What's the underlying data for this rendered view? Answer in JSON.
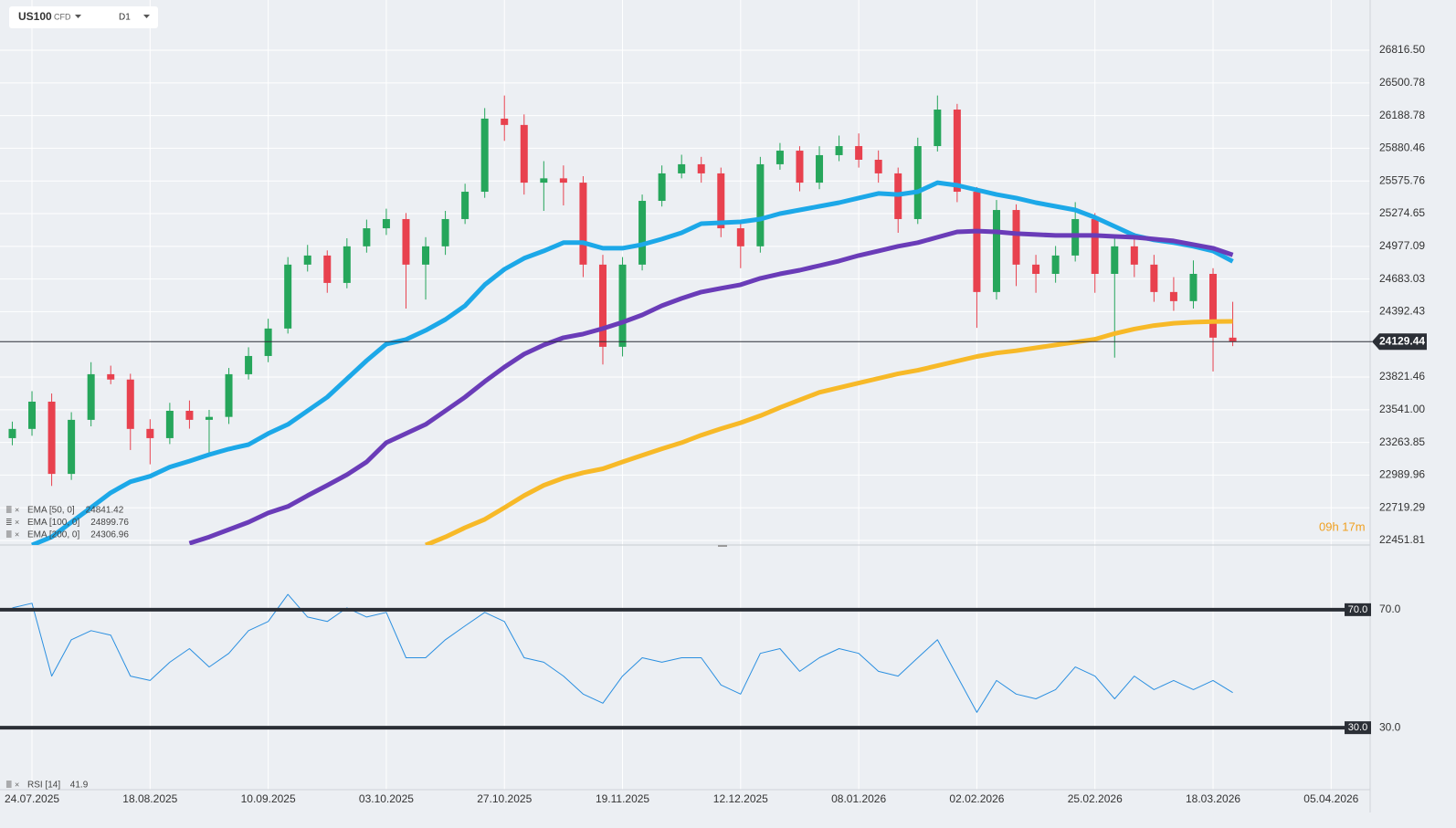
{
  "toolbar": {
    "symbol": "US100",
    "instrument": "CFD",
    "timeframe": "D1"
  },
  "countdown": "09h 17m",
  "chart_data": [
    {
      "type": "candlestick",
      "log_scale": true,
      "grid": true,
      "up_color": "#26a65b",
      "down_color": "#e8414e",
      "last_price": 24129.44,
      "categories": [
        null,
        "24.07.2025",
        null,
        null,
        null,
        null,
        null,
        "18.08.2025",
        null,
        null,
        null,
        null,
        null,
        "10.09.2025",
        null,
        null,
        null,
        null,
        null,
        "03.10.2025",
        null,
        null,
        null,
        null,
        null,
        "27.10.2025",
        null,
        null,
        null,
        null,
        null,
        "19.11.2025",
        null,
        null,
        null,
        null,
        null,
        "12.12.2025",
        null,
        null,
        null,
        null,
        null,
        "08.01.2026",
        null,
        null,
        null,
        null,
        null,
        "02.02.2026",
        null,
        null,
        null,
        null,
        null,
        "25.02.2026",
        null,
        null,
        null,
        null,
        null,
        "18.03.2026",
        null,
        null,
        null,
        null,
        null,
        "05.04.2026",
        null,
        null
      ],
      "open": [
        23300,
        23378,
        23610,
        23000,
        23455,
        23846,
        23800,
        23378,
        23300,
        23532,
        23455,
        23480,
        23846,
        24004,
        24244,
        24812,
        24894,
        24648,
        24977,
        25141,
        25225,
        24812,
        24977,
        25225,
        25476,
        26160,
        26100,
        25560,
        25600,
        25560,
        24812,
        24084,
        24812,
        25392,
        25646,
        25731,
        25646,
        25141,
        24977,
        25731,
        25858,
        25560,
        25816,
        25901,
        25773,
        25646,
        25225,
        25901,
        26246,
        25476,
        24567,
        25308,
        24812,
        24729,
        24894,
        25225,
        24729,
        24977,
        24812,
        24567,
        24486,
        24729,
        24164,
        null,
        null,
        null,
        null,
        null,
        null,
        null
      ],
      "high": [
        23440,
        23700,
        23680,
        23520,
        23950,
        23920,
        23850,
        23460,
        23600,
        23620,
        23540,
        23900,
        24080,
        24330,
        24880,
        24990,
        24940,
        25050,
        25220,
        25320,
        25280,
        25060,
        25300,
        25550,
        26260,
        26380,
        26200,
        25760,
        25720,
        25620,
        24900,
        24880,
        25450,
        25720,
        25820,
        25800,
        25700,
        25200,
        25800,
        25930,
        25900,
        25900,
        26000,
        26020,
        25860,
        25700,
        25980,
        26380,
        26300,
        25520,
        25400,
        25360,
        24900,
        24980,
        25380,
        25280,
        25060,
        25100,
        24900,
        24700,
        24850,
        24780,
        24480,
        null,
        null,
        null,
        null,
        null,
        null,
        null
      ],
      "low": [
        23240,
        23320,
        22900,
        22950,
        23400,
        23760,
        23200,
        23080,
        23250,
        23380,
        23150,
        23420,
        23800,
        23950,
        24200,
        24750,
        24560,
        24600,
        24920,
        25080,
        24420,
        24500,
        24900,
        25180,
        25420,
        25950,
        25450,
        25300,
        25350,
        24700,
        23930,
        24000,
        24760,
        25340,
        25600,
        25560,
        25060,
        24780,
        24920,
        25680,
        25480,
        25500,
        25760,
        25700,
        25560,
        25100,
        25180,
        25850,
        25380,
        24250,
        24500,
        24620,
        24560,
        24650,
        24840,
        24560,
        23990,
        24700,
        24480,
        24400,
        24420,
        23870,
        24090,
        null,
        null,
        null,
        null,
        null,
        null,
        null
      ],
      "close": [
        23378,
        23610,
        23000,
        23455,
        23846,
        23800,
        23378,
        23300,
        23532,
        23455,
        23480,
        23846,
        24004,
        24244,
        24812,
        24894,
        24648,
        24977,
        25141,
        25225,
        24812,
        24977,
        25225,
        25476,
        26160,
        26100,
        25560,
        25600,
        25560,
        24812,
        24084,
        24812,
        25392,
        25646,
        25731,
        25646,
        25141,
        24977,
        25731,
        25858,
        25560,
        25816,
        25901,
        25773,
        25646,
        25225,
        25901,
        26246,
        25476,
        24567,
        25308,
        24812,
        24729,
        24894,
        25225,
        24729,
        24977,
        24812,
        24567,
        24486,
        24729,
        24164,
        24129.44,
        null,
        null,
        null,
        null,
        null,
        null,
        null
      ],
      "series": [
        {
          "name": "EMA [50, 0]",
          "color": "#1ca8e8",
          "last_value": 24841.42,
          "values": [
            null,
            22414,
            22480,
            22601,
            22721,
            22843,
            22935,
            22980,
            23057,
            23107,
            23161,
            23208,
            23246,
            23339,
            23416,
            23532,
            23649,
            23806,
            23964,
            24108,
            24148,
            24228,
            24323,
            24445,
            24632,
            24770,
            24869,
            24935,
            25010,
            25010,
            24960,
            24960,
            24993,
            25043,
            25100,
            25183,
            25191,
            25200,
            25225,
            25275,
            25308,
            25342,
            25375,
            25418,
            25460,
            25450,
            25476,
            25560,
            25535,
            25493,
            25450,
            25418,
            25375,
            25342,
            25308,
            25241,
            25158,
            25076,
            25035,
            25010,
            24977,
            24935,
            24841.42,
            null,
            null,
            null,
            null,
            null,
            null,
            null
          ]
        },
        {
          "name": "EMA [100, 0]",
          "color": "#6a3cb8",
          "last_value": 24899.76,
          "values": [
            null,
            null,
            null,
            null,
            null,
            null,
            null,
            null,
            null,
            22429,
            22480,
            22541,
            22601,
            22677,
            22730,
            22820,
            22905,
            22993,
            23100,
            23262,
            23339,
            23416,
            23532,
            23649,
            23783,
            23908,
            24020,
            24100,
            24164,
            24196,
            24244,
            24299,
            24364,
            24445,
            24510,
            24567,
            24600,
            24632,
            24689,
            24729,
            24762,
            24803,
            24845,
            24894,
            24935,
            24977,
            25010,
            25059,
            25108,
            25116,
            25108,
            25092,
            25084,
            25076,
            25076,
            25076,
            25067,
            25059,
            25043,
            25026,
            24993,
            24960,
            24899.76,
            null,
            null,
            null,
            null,
            null,
            null,
            null
          ]
        },
        {
          "name": "EMA [200, 0]",
          "color": "#f7b928",
          "last_value": 24306.96,
          "values": [
            null,
            null,
            null,
            null,
            null,
            null,
            null,
            null,
            null,
            null,
            null,
            null,
            null,
            null,
            null,
            null,
            null,
            null,
            null,
            null,
            null,
            22414,
            22480,
            22556,
            22624,
            22720,
            22820,
            22905,
            22966,
            23010,
            23043,
            23100,
            23155,
            23210,
            23262,
            23325,
            23380,
            23430,
            23490,
            23560,
            23625,
            23690,
            23730,
            23770,
            23810,
            23850,
            23880,
            23920,
            23960,
            24000,
            24030,
            24050,
            24075,
            24100,
            24125,
            24150,
            24200,
            24240,
            24270,
            24290,
            24300,
            24305,
            24306.96,
            null,
            null,
            null,
            null,
            null,
            null,
            null
          ]
        }
      ],
      "ylim": [
        22415,
        27309
      ],
      "yticks": [
        {
          "value": 26816.5,
          "label": "26816.50"
        },
        {
          "value": 26500.78,
          "label": "26500.78"
        },
        {
          "value": 26188.78,
          "label": "26188.78"
        },
        {
          "value": 25880.46,
          "label": "25880.46"
        },
        {
          "value": 25575.76,
          "label": "25575.76"
        },
        {
          "value": 25274.65,
          "label": "25274.65"
        },
        {
          "value": 24977.09,
          "label": "24977.09"
        },
        {
          "value": 24683.03,
          "label": "24683.03"
        },
        {
          "value": 24392.43,
          "label": "24392.43"
        },
        {
          "value": 23821.46,
          "label": "23821.46"
        },
        {
          "value": 23541,
          "label": "23541.00"
        },
        {
          "value": 23263.85,
          "label": "23263.85"
        },
        {
          "value": 22989.96,
          "label": "22989.96"
        },
        {
          "value": 22719.29,
          "label": "22719.29"
        },
        {
          "value": 22451.81,
          "label": "22451.81"
        }
      ]
    },
    {
      "type": "line",
      "series": [
        {
          "name": "RSI [14]",
          "color": "#2a8fe0",
          "last_value": 41.9,
          "values": [
            70.6,
            72.2,
            47.5,
            59.8,
            62.9,
            61.4,
            47.5,
            46.0,
            52.2,
            56.8,
            50.6,
            55.2,
            62.9,
            66.0,
            75.2,
            67.5,
            66.0,
            70.6,
            67.5,
            69.1,
            53.7,
            53.7,
            59.8,
            64.5,
            69.1,
            66.0,
            53.7,
            52.2,
            47.5,
            41.4,
            38.3,
            47.5,
            53.7,
            52.2,
            53.7,
            53.7,
            44.5,
            41.4,
            55.2,
            56.8,
            49.1,
            53.7,
            56.8,
            55.2,
            49.1,
            47.5,
            53.7,
            59.8,
            47.5,
            35.2,
            46.0,
            41.4,
            39.8,
            42.9,
            50.6,
            47.5,
            39.8,
            47.5,
            42.9,
            46.0,
            42.9,
            46.0,
            41.9,
            null,
            null,
            null,
            null,
            null,
            null,
            null
          ]
        }
      ],
      "ylim": [
        9,
        91
      ],
      "yticks": [
        {
          "value": 30,
          "label": "30.0"
        },
        {
          "value": 70,
          "label": "70.0"
        }
      ]
    }
  ]
}
